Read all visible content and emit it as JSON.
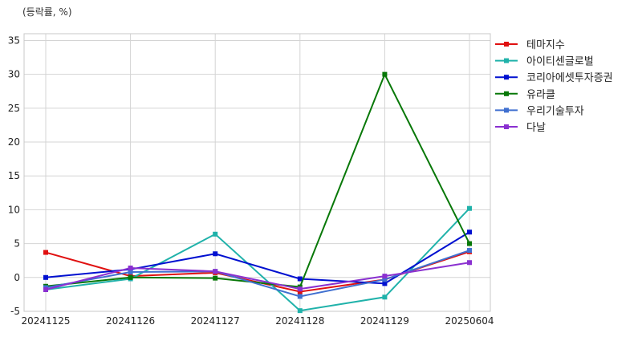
{
  "chart_data": {
    "type": "line",
    "ylabel": "(등락률, %)",
    "categories": [
      "20241125",
      "20241126",
      "20241127",
      "20241128",
      "20241129",
      "20250604"
    ],
    "ylim": [
      -5,
      36
    ],
    "yticks": [
      -5,
      0,
      5,
      10,
      15,
      20,
      25,
      30,
      35
    ],
    "grid": true,
    "legend_position": "right",
    "series": [
      {
        "name": "테마지수",
        "color": "#e01010",
        "values": [
          3.7,
          0.2,
          0.7,
          -2.1,
          -0.3,
          3.8
        ]
      },
      {
        "name": "아이티센글로벌",
        "color": "#20b2aa",
        "values": [
          -1.8,
          -0.2,
          6.4,
          -4.9,
          -2.9,
          10.2
        ]
      },
      {
        "name": "코리아에셋투자증권",
        "color": "#0010d0",
        "values": [
          0.0,
          1.2,
          3.5,
          -0.2,
          -0.9,
          6.7
        ]
      },
      {
        "name": "유라클",
        "color": "#087808",
        "values": [
          -1.3,
          0.0,
          -0.1,
          -1.4,
          30.0,
          5.0
        ]
      },
      {
        "name": "우리기술투자",
        "color": "#4070d0",
        "values": [
          -1.5,
          0.8,
          0.9,
          -2.8,
          -0.3,
          4.0
        ]
      },
      {
        "name": "다날",
        "color": "#8a30d0",
        "values": [
          -1.8,
          1.4,
          0.9,
          -1.7,
          0.2,
          2.2
        ]
      }
    ]
  }
}
